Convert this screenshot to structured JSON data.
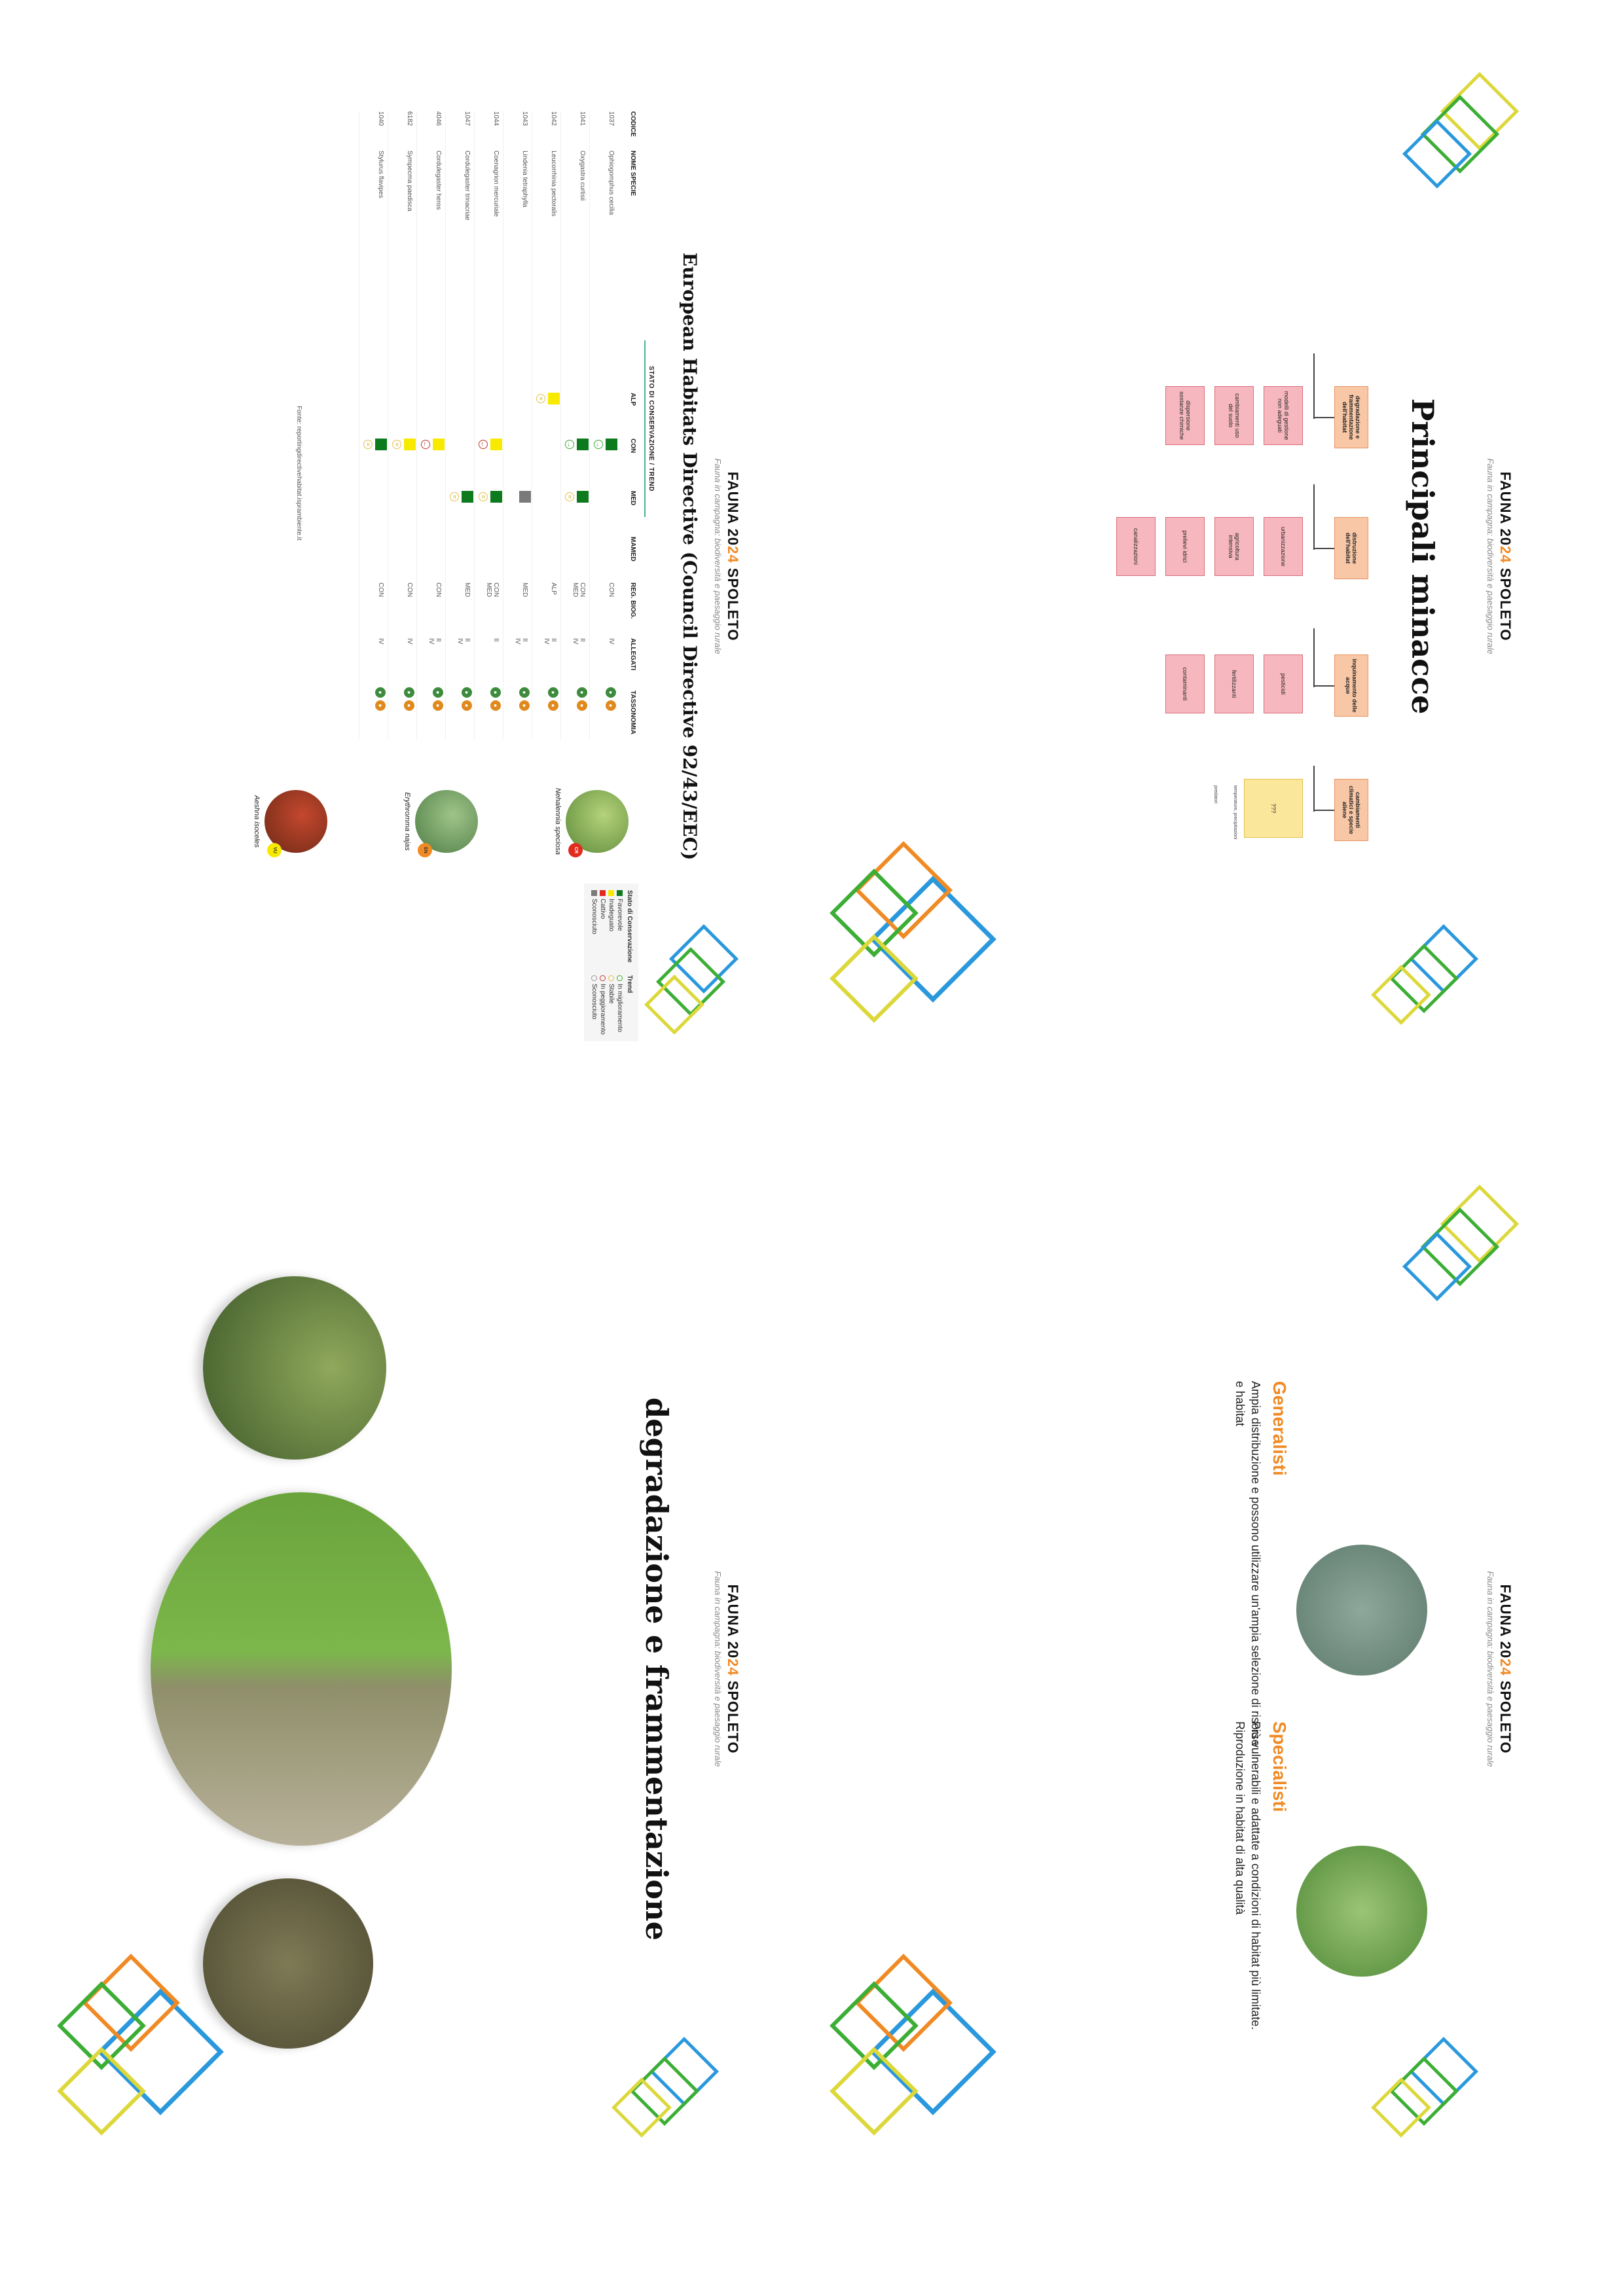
{
  "brand": {
    "pre": "FAUNA 20",
    "accent": "24",
    "post": " SPOLETO",
    "subtitle": "Fauna in campagna: biodiversità e paesaggio rurale",
    "accent_color": "#f08a24"
  },
  "habitats": {
    "title": "European Habitats Directive (Council Directive 92/43/EEC)",
    "group_header": "STATO DI CONSERVAZIONE / TREND",
    "columns": {
      "code": "CODICE",
      "species": "NOME SPECIE",
      "alp": "ALP",
      "con": "CON",
      "med": "MED",
      "mamed": "MAMED",
      "reg": "REG. BIOG.",
      "allegati": "ALLEGATI",
      "taxo": "TASSONOMIA"
    },
    "rows": [
      {
        "code": "1037",
        "name": "Ophiogomphus cecilia",
        "reg": "CON",
        "all": "IV"
      },
      {
        "code": "1041",
        "name": "Oxygastra curtisii",
        "reg": "CON\nMED",
        "all": "II\nIV"
      },
      {
        "code": "1042",
        "name": "Leucorrhinia pectoralis",
        "reg": "ALP",
        "all": "II\nIV"
      },
      {
        "code": "1043",
        "name": "Lindenia tetraphylla",
        "reg": "MED",
        "all": "II\nIV"
      },
      {
        "code": "1044",
        "name": "Coenagrion mercuriale",
        "reg": "CON\nMED",
        "all": "II"
      },
      {
        "code": "1047",
        "name": "Cordulegaster trinacriae",
        "reg": "MED",
        "all": "II\nIV"
      },
      {
        "code": "4046",
        "name": "Cordulegaster heros",
        "reg": "CON",
        "all": "II\nIV"
      },
      {
        "code": "6182",
        "name": "Sympecma paedisca",
        "reg": "CON",
        "all": "IV"
      },
      {
        "code": "1040",
        "name": "Stylurus flavipes",
        "reg": "CON",
        "all": "IV"
      }
    ],
    "source": "Fonte: reportingdirectivehabitat.isprambiente.it",
    "legend_status": {
      "title": "Stato di Conservazione",
      "items": [
        "Favorevole",
        "Inadeguato",
        "Cattivo",
        "Sconosciuto"
      ],
      "colors": [
        "#0d7a1e",
        "#f7ea00",
        "#e12b1f",
        "#7a7a7a"
      ]
    },
    "legend_trend": {
      "title": "Trend",
      "items": [
        "In miglioramento",
        "Stabile",
        "In peggioramento",
        "Sconosciuto"
      ]
    },
    "species": [
      {
        "name": "Nehalennia speciosa",
        "badge": "CR",
        "color": "#e12b1f"
      },
      {
        "name": "Erythromma najas",
        "badge": "EN",
        "color": "#f08a24"
      },
      {
        "name": "Aeshna isoceles",
        "badge": "VU",
        "color": "#f7ea00"
      }
    ]
  },
  "minacce": {
    "title": "Principali minacce",
    "categories": [
      {
        "label": "degradazione e frammentazione dell'habitat",
        "leaves": [
          "modelli di gestione non adeguati",
          "cambiamenti uso del suolo",
          "dispersione sostanze chimiche"
        ]
      },
      {
        "label": "distruzione dell'habitat",
        "leaves": [
          "urbanizzazione",
          "agricoltura intensiva",
          "prelievi idrici",
          "canalizzazioni"
        ]
      },
      {
        "label": "inquinamento delle acque",
        "leaves": [
          "pesticidi",
          "fertilizzanti",
          "contaminanti"
        ]
      },
      {
        "label": "cambiamenti climatici e specie aliene",
        "leaves": [
          "???"
        ]
      }
    ],
    "notes": [
      "temperature, precipitazioni",
      "predatori"
    ]
  },
  "degradazione": {
    "title": "degradazione e frammentazione"
  },
  "gs": {
    "generalisti": {
      "title": "Generalisti",
      "text": "Ampia distribuzione e possono utilizzare un'ampia selezione di risorse e habitat"
    },
    "specialisti": {
      "title": "Specialisti",
      "text": "Più vulnerabili e adattate a condizioni di habitat più limitate. Riproduzione in habitat di alta qualità"
    }
  },
  "palette": {
    "blue": "#2a98dc",
    "green": "#3cae35",
    "yellow": "#dcd83b",
    "orange": "#f08a24"
  }
}
